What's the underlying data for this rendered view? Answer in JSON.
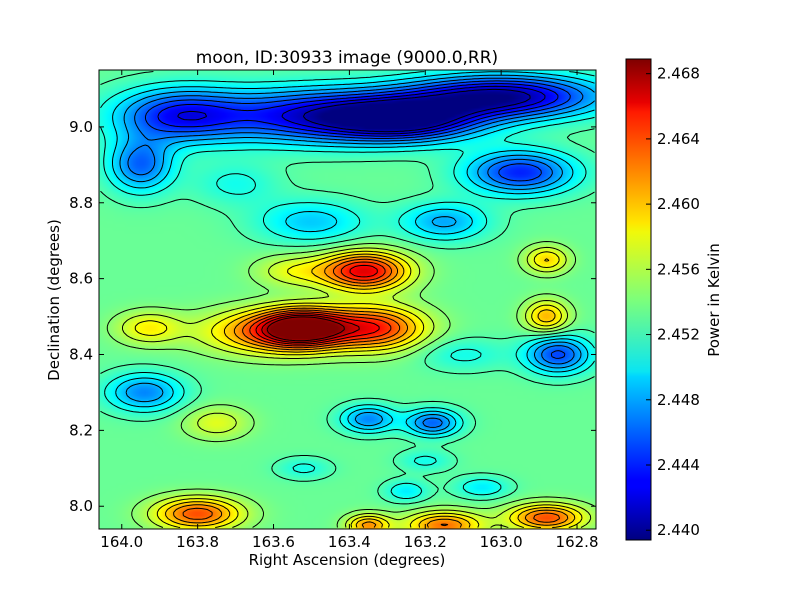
{
  "chart_data": {
    "type": "heatmap",
    "title": "moon, ID:30933 image (9000.0,RR)",
    "xlabel": "Right Ascension (degrees)",
    "ylabel": "Declination (degrees)",
    "colorbar_label": "Power in Kelvin",
    "xlim": [
      164.06,
      162.75
    ],
    "ylim": [
      7.94,
      9.15
    ],
    "x_ticks": [
      164.0,
      163.8,
      163.6,
      163.4,
      163.2,
      163.0,
      162.8
    ],
    "x_tick_labels": [
      "164.0",
      "163.8",
      "163.6",
      "163.4",
      "163.2",
      "163.0",
      "162.8"
    ],
    "y_ticks": [
      8.0,
      8.2,
      8.4,
      8.6,
      8.8,
      9.0
    ],
    "y_tick_labels": [
      "8.0",
      "8.2",
      "8.4",
      "8.6",
      "8.8",
      "9.0"
    ],
    "colorbar_range": [
      2.4394,
      2.4689
    ],
    "colorbar_ticks": [
      2.44,
      2.444,
      2.448,
      2.452,
      2.456,
      2.46,
      2.464,
      2.468
    ],
    "colorbar_tick_labels": [
      "2.440",
      "2.444",
      "2.448",
      "2.452",
      "2.456",
      "2.460",
      "2.464",
      "2.468"
    ],
    "colormap": "jet",
    "background_value": 2.4535,
    "contours": true,
    "features": [
      {
        "ra": 163.52,
        "dec": 8.47,
        "value": 2.468,
        "sx": 0.08,
        "sy": 0.035
      },
      {
        "ra": 163.33,
        "dec": 8.47,
        "value": 2.464,
        "sx": 0.09,
        "sy": 0.04
      },
      {
        "ra": 163.62,
        "dec": 8.46,
        "value": 2.461,
        "sx": 0.12,
        "sy": 0.04
      },
      {
        "ra": 163.36,
        "dec": 8.62,
        "value": 2.466,
        "sx": 0.08,
        "sy": 0.035
      },
      {
        "ra": 163.55,
        "dec": 8.62,
        "value": 2.457,
        "sx": 0.07,
        "sy": 0.03
      },
      {
        "ra": 163.93,
        "dec": 8.47,
        "value": 2.458,
        "sx": 0.06,
        "sy": 0.03
      },
      {
        "ra": 163.5,
        "dec": 9.03,
        "value": 2.443,
        "sx": 0.18,
        "sy": 0.05
      },
      {
        "ra": 163.25,
        "dec": 9.02,
        "value": 2.441,
        "sx": 0.14,
        "sy": 0.04
      },
      {
        "ra": 163.0,
        "dec": 9.08,
        "value": 2.44,
        "sx": 0.18,
        "sy": 0.04
      },
      {
        "ra": 163.85,
        "dec": 9.03,
        "value": 2.444,
        "sx": 0.12,
        "sy": 0.05
      },
      {
        "ra": 162.95,
        "dec": 8.88,
        "value": 2.444,
        "sx": 0.1,
        "sy": 0.04
      },
      {
        "ra": 163.95,
        "dec": 8.9,
        "value": 2.446,
        "sx": 0.06,
        "sy": 0.05
      },
      {
        "ra": 162.85,
        "dec": 8.4,
        "value": 2.445,
        "sx": 0.06,
        "sy": 0.035
      },
      {
        "ra": 163.94,
        "dec": 8.3,
        "value": 2.447,
        "sx": 0.07,
        "sy": 0.035
      },
      {
        "ra": 163.35,
        "dec": 8.23,
        "value": 2.447,
        "sx": 0.05,
        "sy": 0.025
      },
      {
        "ra": 163.18,
        "dec": 8.22,
        "value": 2.446,
        "sx": 0.05,
        "sy": 0.025
      },
      {
        "ra": 162.88,
        "dec": 8.5,
        "value": 2.46,
        "sx": 0.04,
        "sy": 0.03
      },
      {
        "ra": 162.88,
        "dec": 8.65,
        "value": 2.459,
        "sx": 0.04,
        "sy": 0.025
      },
      {
        "ra": 163.1,
        "dec": 8.4,
        "value": 2.451,
        "sx": 0.08,
        "sy": 0.03
      },
      {
        "ra": 163.8,
        "dec": 7.98,
        "value": 2.463,
        "sx": 0.08,
        "sy": 0.03
      },
      {
        "ra": 163.15,
        "dec": 7.95,
        "value": 2.462,
        "sx": 0.07,
        "sy": 0.025
      },
      {
        "ra": 162.88,
        "dec": 7.97,
        "value": 2.463,
        "sx": 0.07,
        "sy": 0.025
      },
      {
        "ra": 163.35,
        "dec": 7.95,
        "value": 2.461,
        "sx": 0.04,
        "sy": 0.02
      },
      {
        "ra": 163.2,
        "dec": 8.12,
        "value": 2.451,
        "sx": 0.05,
        "sy": 0.02
      },
      {
        "ra": 163.52,
        "dec": 8.1,
        "value": 2.451,
        "sx": 0.05,
        "sy": 0.02
      },
      {
        "ra": 163.05,
        "dec": 8.05,
        "value": 2.45,
        "sx": 0.05,
        "sy": 0.02
      },
      {
        "ra": 163.25,
        "dec": 8.04,
        "value": 2.45,
        "sx": 0.04,
        "sy": 0.02
      },
      {
        "ra": 163.75,
        "dec": 8.22,
        "value": 2.457,
        "sx": 0.06,
        "sy": 0.03
      },
      {
        "ra": 163.5,
        "dec": 8.75,
        "value": 2.449,
        "sx": 0.1,
        "sy": 0.04
      },
      {
        "ra": 163.15,
        "dec": 8.75,
        "value": 2.448,
        "sx": 0.08,
        "sy": 0.035
      },
      {
        "ra": 163.7,
        "dec": 8.85,
        "value": 2.451,
        "sx": 0.08,
        "sy": 0.04
      }
    ]
  }
}
